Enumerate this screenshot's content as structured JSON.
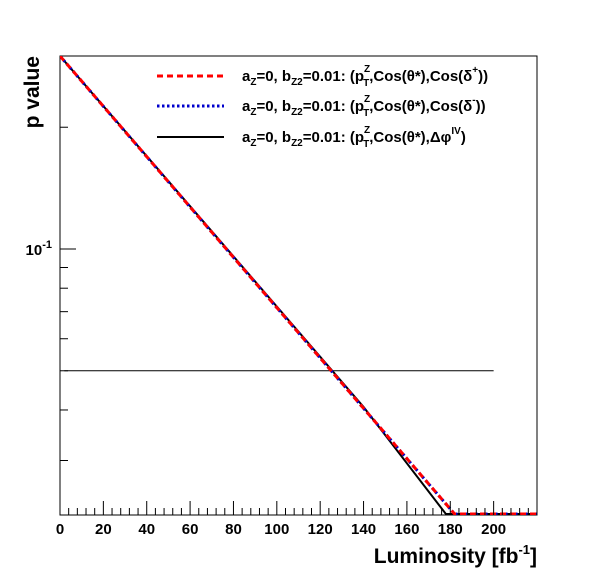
{
  "chart_data": {
    "type": "line",
    "xlabel": "Luminosity [fb",
    "xlabel_sup": "-1",
    "xlabel_tail": "]",
    "ylabel": "p value",
    "xlim": [
      0,
      220
    ],
    "ylim": [
      0.022,
      0.3
    ],
    "yscale": "log",
    "grid": false,
    "legend_position": "top-right",
    "x_ticks": [
      "0",
      "20",
      "40",
      "60",
      "80",
      "100",
      "120",
      "140",
      "160",
      "180",
      "200"
    ],
    "y_tick_label": {
      "base": "10",
      "exp": "-1",
      "value": 0.1
    },
    "series": [
      {
        "legend": {
          "pre": "a",
          "s1": "Z",
          "mid": "=0, b",
          "s2": "Z2",
          "post": "=0.01: (p",
          "sup": "Z",
          "sub": "T",
          "tail": ",Cos(θ*),Cos(δ",
          "tail_sup": "+",
          "close": "))"
        },
        "color": "#ff0000",
        "style": "dashed",
        "x": [
          0,
          182,
          220
        ],
        "y": [
          0.3,
          0.02213,
          0.02213
        ]
      },
      {
        "legend": {
          "pre": "a",
          "s1": "Z",
          "mid": "=0, b",
          "s2": "Z2",
          "post": "=0.01: (p",
          "sup": "Z",
          "sub": "T",
          "tail": ",Cos(θ*),Cos(δ",
          "tail_sup": "-",
          "close": "))"
        },
        "color": "#0000cc",
        "style": "dotted",
        "x": [
          0,
          182,
          220
        ],
        "y": [
          0.3,
          0.02213,
          0.02213
        ]
      },
      {
        "legend": {
          "pre": "a",
          "s1": "Z",
          "mid": "=0, b",
          "s2": "Z2",
          "post": "=0.01: (p",
          "sup": "Z",
          "sub": "T",
          "tail": ",Cos(θ*),Δφ",
          "tail_sup": "IV",
          "close": ")"
        },
        "color": "#000000",
        "style": "solid",
        "x": [
          0,
          70,
          140,
          178,
          220
        ],
        "y": [
          0.3,
          0.1106,
          0.0407,
          0.02213,
          0.02213
        ]
      }
    ],
    "reference_line": {
      "y": 0.05,
      "x": [
        2,
        200
      ],
      "color": "#000000"
    }
  }
}
